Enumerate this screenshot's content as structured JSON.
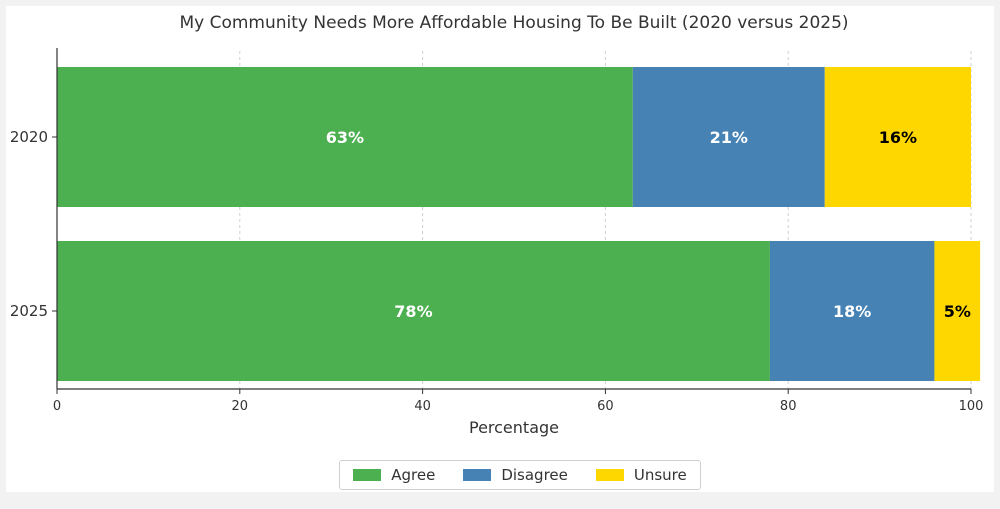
{
  "chart_data": {
    "type": "bar",
    "orientation": "horizontal",
    "stacked": true,
    "title": "My Community Needs More Affordable Housing To Be Built (2020 versus 2025)",
    "xlabel": "Percentage",
    "ylabel": "",
    "xlim": [
      0,
      100
    ],
    "xticks": [
      "0",
      "20",
      "40",
      "60",
      "80",
      "100"
    ],
    "categories": [
      "2020",
      "2025"
    ],
    "series": [
      {
        "name": "Agree",
        "values": [
          63,
          78
        ],
        "color": "#4caf50",
        "labels": [
          "63%",
          "78%"
        ],
        "label_color": "#ffffff"
      },
      {
        "name": "Disagree",
        "values": [
          21,
          18
        ],
        "color": "#4682b4",
        "labels": [
          "21%",
          "18%"
        ],
        "label_color": "#ffffff"
      },
      {
        "name": "Unsure",
        "values": [
          16,
          5
        ],
        "color": "#ffd700",
        "labels": [
          "16%",
          "5%"
        ],
        "label_color": "#000000"
      }
    ],
    "grid": true,
    "legend_position": "bottom-center"
  }
}
